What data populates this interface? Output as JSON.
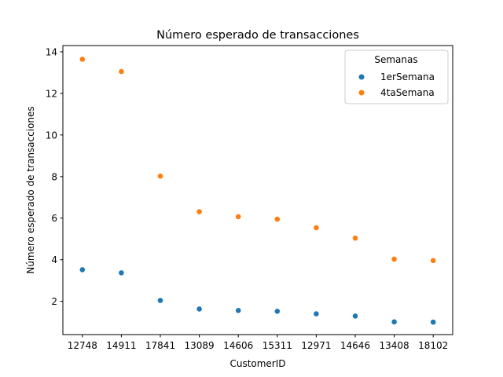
{
  "chart_data": {
    "type": "scatter",
    "title": "Número esperado de transacciones",
    "xlabel": "CustomerID",
    "ylabel": "Número esperado de transacciones",
    "categories": [
      "12748",
      "14911",
      "17841",
      "13089",
      "14606",
      "15311",
      "12971",
      "14646",
      "13408",
      "18102"
    ],
    "yticks": [
      2,
      4,
      6,
      8,
      10,
      12,
      14
    ],
    "ylim": [
      0.4,
      14.3
    ],
    "grid": false,
    "legend": {
      "title": "Semanas",
      "position": "top-right"
    },
    "series": [
      {
        "name": "1erSemana",
        "color": "#1f77b4",
        "values": [
          3.52,
          3.37,
          2.04,
          1.63,
          1.56,
          1.52,
          1.4,
          1.29,
          1.01,
          1.0
        ]
      },
      {
        "name": "4taSemana",
        "color": "#ff7f0e",
        "values": [
          13.64,
          13.05,
          8.02,
          6.31,
          6.07,
          5.95,
          5.54,
          5.04,
          4.03,
          3.96
        ]
      }
    ]
  }
}
